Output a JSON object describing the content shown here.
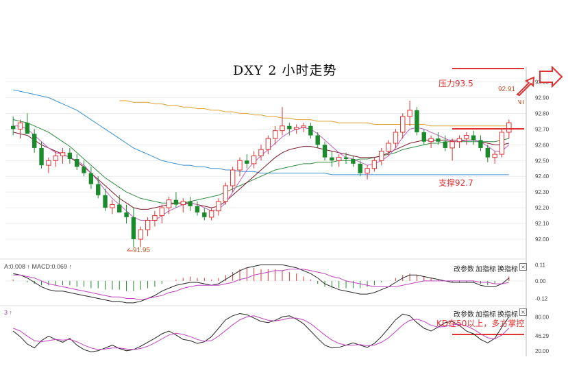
{
  "title": "DXY 2 小时走势",
  "annotations": {
    "resistance": "压力93.5",
    "support": "支撑92.7",
    "kd_note": "KD在50以上，多方掌控",
    "last_high": "92.91",
    "low_mark": "91.95"
  },
  "indicator_header": {
    "macd_text": "A:0.008 ↑ MACD:0.069 ↑",
    "kd_text": "3 ↑"
  },
  "toolbar": {
    "change_params": "改参数",
    "add_indicator": "加指标",
    "switch_indicator": "换指标",
    "close_glyph": "×"
  },
  "axes": {
    "main_ticks": [
      "93.00",
      "92.90",
      "92.80",
      "92.70",
      "92.60",
      "92.50",
      "92.40",
      "92.30",
      "92.20",
      "92.10",
      "92.00"
    ],
    "macd_ticks": [
      "0.11",
      "0.00",
      "-0.12"
    ],
    "kd_ticks": [
      "80.00",
      "46.29",
      "20.00"
    ]
  },
  "colors": {
    "up": "#e03030",
    "down": "#1a8a2a",
    "ma_blue": "#3a8fd0",
    "ma_orange": "#e0a030",
    "ma_green": "#2e8b3e",
    "ma_darkred": "#7a1a2a",
    "ma_pink": "#c060c0",
    "ma_black": "#222222",
    "annotation": "#e03030"
  },
  "chart_data": {
    "type": "candlestick",
    "title": "DXY 2 小时走势",
    "ylim": [
      91.9,
      93.05
    ],
    "candles": [
      [
        92.72,
        92.78,
        92.66,
        92.7
      ],
      [
        92.7,
        92.76,
        92.64,
        92.74
      ],
      [
        92.74,
        92.8,
        92.68,
        92.67
      ],
      [
        92.67,
        92.7,
        92.55,
        92.58
      ],
      [
        92.58,
        92.62,
        92.45,
        92.47
      ],
      [
        92.47,
        92.52,
        92.42,
        92.5
      ],
      [
        92.5,
        92.56,
        92.46,
        92.53
      ],
      [
        92.53,
        92.58,
        92.48,
        92.55
      ],
      [
        92.55,
        92.58,
        92.48,
        92.51
      ],
      [
        92.51,
        92.54,
        92.44,
        92.46
      ],
      [
        92.46,
        92.5,
        92.4,
        92.42
      ],
      [
        92.42,
        92.46,
        92.32,
        92.35
      ],
      [
        92.35,
        92.4,
        92.26,
        92.28
      ],
      [
        92.28,
        92.32,
        92.18,
        92.2
      ],
      [
        92.2,
        92.25,
        92.16,
        92.22
      ],
      [
        92.22,
        92.28,
        92.18,
        92.17
      ],
      [
        92.17,
        92.22,
        92.1,
        92.14
      ],
      [
        92.14,
        92.2,
        91.95,
        92.0
      ],
      [
        92.0,
        92.08,
        91.95,
        92.06
      ],
      [
        92.06,
        92.14,
        92.02,
        92.12
      ],
      [
        92.12,
        92.18,
        92.08,
        92.15
      ],
      [
        92.15,
        92.22,
        92.1,
        92.2
      ],
      [
        92.2,
        92.27,
        92.16,
        92.25
      ],
      [
        92.25,
        92.3,
        92.2,
        92.22
      ],
      [
        92.22,
        92.26,
        92.17,
        92.24
      ],
      [
        92.24,
        92.27,
        92.18,
        92.21
      ],
      [
        92.21,
        92.24,
        92.15,
        92.17
      ],
      [
        92.17,
        92.2,
        92.12,
        92.14
      ],
      [
        92.14,
        92.2,
        92.12,
        92.18
      ],
      [
        92.18,
        92.26,
        92.15,
        92.24
      ],
      [
        92.24,
        92.36,
        92.22,
        92.34
      ],
      [
        92.34,
        92.46,
        92.3,
        92.44
      ],
      [
        92.44,
        92.52,
        92.4,
        92.5
      ],
      [
        92.5,
        92.54,
        92.45,
        92.48
      ],
      [
        92.48,
        92.56,
        92.45,
        92.53
      ],
      [
        92.53,
        92.6,
        92.5,
        92.57
      ],
      [
        92.57,
        92.66,
        92.54,
        92.64
      ],
      [
        92.64,
        92.72,
        92.6,
        92.69
      ],
      [
        92.69,
        92.84,
        92.66,
        92.72
      ],
      [
        92.72,
        92.74,
        92.66,
        92.7
      ],
      [
        92.7,
        92.73,
        92.67,
        92.71
      ],
      [
        92.71,
        92.74,
        92.68,
        92.72
      ],
      [
        92.72,
        92.74,
        92.64,
        92.66
      ],
      [
        92.66,
        92.68,
        92.58,
        92.6
      ],
      [
        92.6,
        92.62,
        92.5,
        92.52
      ],
      [
        92.52,
        92.56,
        92.46,
        92.5
      ],
      [
        92.5,
        92.54,
        92.46,
        92.52
      ],
      [
        92.52,
        92.55,
        92.48,
        92.51
      ],
      [
        92.51,
        92.53,
        92.46,
        92.48
      ],
      [
        92.48,
        92.5,
        92.4,
        92.42
      ],
      [
        92.42,
        92.47,
        92.38,
        92.45
      ],
      [
        92.45,
        92.52,
        92.43,
        92.5
      ],
      [
        92.5,
        92.58,
        92.47,
        92.56
      ],
      [
        92.56,
        92.63,
        92.53,
        92.61
      ],
      [
        92.61,
        92.7,
        92.58,
        92.68
      ],
      [
        92.68,
        92.8,
        92.64,
        92.78
      ],
      [
        92.78,
        92.88,
        92.72,
        92.82
      ],
      [
        92.82,
        92.84,
        92.66,
        92.68
      ],
      [
        92.68,
        92.7,
        92.6,
        92.62
      ],
      [
        92.62,
        92.66,
        92.58,
        92.64
      ],
      [
        92.64,
        92.68,
        92.6,
        92.62
      ],
      [
        92.62,
        92.66,
        92.56,
        92.58
      ],
      [
        92.58,
        92.64,
        92.5,
        92.62
      ],
      [
        92.62,
        92.66,
        92.58,
        92.64
      ],
      [
        92.64,
        92.68,
        92.6,
        92.66
      ],
      [
        92.66,
        92.69,
        92.6,
        92.63
      ],
      [
        92.63,
        92.66,
        92.56,
        92.58
      ],
      [
        92.58,
        92.6,
        92.49,
        92.52
      ],
      [
        92.52,
        92.56,
        92.48,
        92.54
      ],
      [
        92.54,
        92.7,
        92.52,
        92.68
      ],
      [
        92.68,
        92.76,
        92.64,
        92.74
      ]
    ],
    "moving_averages": {
      "blue": [
        92.95,
        92.94,
        92.93,
        92.92,
        92.91,
        92.9,
        92.88,
        92.86,
        92.84,
        92.82,
        92.79,
        92.76,
        92.73,
        92.7,
        92.67,
        92.64,
        92.61,
        92.58,
        92.56,
        92.54,
        92.52,
        92.5,
        92.49,
        92.48,
        92.47,
        92.47,
        92.46,
        92.46,
        92.45,
        92.45,
        92.44,
        92.44,
        92.43,
        92.43,
        92.43,
        92.42,
        92.42,
        92.42,
        92.42,
        92.42,
        92.42,
        92.42,
        92.42,
        92.42,
        92.42,
        92.41,
        92.41,
        92.41,
        92.41,
        92.41,
        92.41,
        92.41,
        92.41,
        92.41,
        92.41,
        92.41,
        92.41,
        92.41,
        92.41,
        92.41,
        92.41,
        92.41,
        92.41,
        92.41,
        92.41,
        92.41,
        92.41,
        92.41,
        92.41,
        92.41,
        92.41
      ],
      "orange": [
        null,
        null,
        null,
        null,
        null,
        null,
        null,
        null,
        null,
        null,
        null,
        null,
        null,
        null,
        null,
        92.88,
        92.88,
        92.87,
        92.87,
        92.87,
        92.86,
        92.86,
        92.85,
        92.85,
        92.84,
        92.84,
        92.83,
        92.83,
        92.82,
        92.82,
        92.81,
        92.81,
        92.8,
        92.8,
        92.79,
        92.79,
        92.78,
        92.78,
        92.77,
        92.77,
        92.76,
        92.76,
        92.76,
        92.75,
        92.75,
        92.75,
        92.74,
        92.74,
        92.74,
        92.74,
        92.74,
        92.73,
        92.73,
        92.73,
        92.73,
        92.73,
        92.73,
        92.73,
        92.73,
        92.72,
        92.72,
        92.72,
        92.72,
        92.72,
        92.72,
        92.72,
        92.72,
        92.72,
        92.72,
        92.72,
        92.72
      ],
      "green": [
        92.76,
        92.75,
        92.74,
        92.72,
        92.7,
        92.68,
        92.65,
        92.62,
        92.59,
        92.55,
        92.51,
        92.47,
        92.43,
        92.39,
        92.36,
        92.33,
        92.3,
        92.28,
        92.26,
        92.25,
        92.24,
        92.23,
        92.23,
        92.23,
        92.23,
        92.24,
        92.25,
        92.26,
        92.27,
        92.28,
        92.3,
        92.32,
        92.34,
        92.36,
        92.38,
        92.4,
        92.42,
        92.44,
        92.45,
        92.46,
        92.47,
        92.48,
        92.48,
        92.49,
        92.49,
        92.49,
        92.5,
        92.5,
        92.5,
        92.51,
        92.51,
        92.52,
        92.53,
        92.54,
        92.55,
        92.57,
        92.58,
        92.59,
        92.6,
        92.61,
        92.61,
        92.62,
        92.62,
        92.62,
        92.62,
        92.62,
        92.62,
        92.62,
        92.62,
        92.63,
        92.64
      ],
      "darkred": [
        92.68,
        92.67,
        92.66,
        92.63,
        92.6,
        92.58,
        92.56,
        92.54,
        92.52,
        92.49,
        92.46,
        92.42,
        92.38,
        92.34,
        92.3,
        92.26,
        92.23,
        92.2,
        92.19,
        92.19,
        92.2,
        92.21,
        92.22,
        92.23,
        92.23,
        92.23,
        92.22,
        92.21,
        92.2,
        92.21,
        92.24,
        92.28,
        92.32,
        92.36,
        92.4,
        92.44,
        92.48,
        92.52,
        92.55,
        92.57,
        92.58,
        92.59,
        92.59,
        92.58,
        92.57,
        92.56,
        92.55,
        92.54,
        92.53,
        92.52,
        92.52,
        92.52,
        92.53,
        92.55,
        92.57,
        92.59,
        92.61,
        92.62,
        92.63,
        92.63,
        92.63,
        92.63,
        92.63,
        92.63,
        92.63,
        92.63,
        92.62,
        92.61,
        92.6,
        92.6,
        92.61
      ],
      "pink": [
        92.72,
        92.72,
        92.7,
        92.66,
        92.62,
        92.58,
        92.55,
        92.54,
        92.52,
        92.5,
        92.47,
        92.42,
        92.37,
        92.31,
        92.26,
        92.22,
        92.18,
        92.14,
        92.12,
        92.12,
        92.12,
        92.15,
        92.18,
        92.2,
        92.22,
        92.23,
        92.22,
        92.2,
        92.18,
        92.19,
        92.23,
        92.3,
        92.37,
        92.44,
        92.49,
        92.53,
        92.57,
        92.61,
        92.65,
        92.68,
        92.7,
        92.71,
        92.7,
        92.67,
        92.63,
        92.59,
        92.55,
        92.52,
        92.51,
        92.49,
        92.47,
        92.48,
        92.5,
        92.53,
        92.58,
        92.65,
        92.7,
        92.71,
        92.7,
        92.68,
        92.66,
        92.64,
        92.62,
        92.62,
        92.63,
        92.63,
        92.62,
        92.59,
        92.56,
        92.56,
        92.6
      ]
    },
    "macd": {
      "histogram": [
        0.01,
        0.0,
        -0.01,
        -0.02,
        -0.03,
        -0.03,
        -0.03,
        -0.03,
        -0.03,
        -0.04,
        -0.04,
        -0.05,
        -0.05,
        -0.06,
        -0.06,
        -0.06,
        -0.07,
        -0.07,
        -0.06,
        -0.05,
        -0.04,
        -0.02,
        0.0,
        0.01,
        0.02,
        0.03,
        0.02,
        0.02,
        0.01,
        0.02,
        0.04,
        0.06,
        0.08,
        0.09,
        0.09,
        0.08,
        0.08,
        0.08,
        0.07,
        0.06,
        0.05,
        0.03,
        0.01,
        -0.02,
        -0.04,
        -0.05,
        -0.05,
        -0.05,
        -0.05,
        -0.05,
        -0.04,
        -0.03,
        -0.01,
        0.0,
        0.02,
        0.04,
        0.05,
        0.04,
        0.03,
        0.02,
        0.01,
        0.0,
        -0.01,
        -0.01,
        -0.01,
        -0.01,
        -0.02,
        -0.03,
        -0.02,
        0.0,
        0.03
      ],
      "dif": [
        0.05,
        0.04,
        0.02,
        -0.01,
        -0.04,
        -0.06,
        -0.07,
        -0.07,
        -0.08,
        -0.09,
        -0.1,
        -0.11,
        -0.12,
        -0.13,
        -0.14,
        -0.14,
        -0.15,
        -0.15,
        -0.14,
        -0.12,
        -0.1,
        -0.07,
        -0.05,
        -0.03,
        -0.02,
        -0.01,
        -0.01,
        -0.02,
        -0.03,
        -0.02,
        0.01,
        0.04,
        0.07,
        0.09,
        0.1,
        0.11,
        0.11,
        0.11,
        0.11,
        0.1,
        0.09,
        0.07,
        0.05,
        0.02,
        -0.02,
        -0.04,
        -0.06,
        -0.07,
        -0.08,
        -0.09,
        -0.09,
        -0.08,
        -0.06,
        -0.04,
        -0.01,
        0.02,
        0.04,
        0.04,
        0.03,
        0.02,
        0.01,
        0.0,
        -0.01,
        -0.01,
        -0.01,
        -0.01,
        -0.03,
        -0.04,
        -0.04,
        -0.02,
        0.02
      ],
      "dea": [
        0.04,
        0.04,
        0.03,
        0.02,
        0.0,
        -0.02,
        -0.03,
        -0.04,
        -0.05,
        -0.06,
        -0.07,
        -0.08,
        -0.09,
        -0.1,
        -0.11,
        -0.11,
        -0.12,
        -0.12,
        -0.13,
        -0.12,
        -0.11,
        -0.1,
        -0.08,
        -0.07,
        -0.05,
        -0.04,
        -0.03,
        -0.03,
        -0.03,
        -0.03,
        -0.02,
        -0.01,
        0.01,
        0.02,
        0.04,
        0.05,
        0.06,
        0.07,
        0.07,
        0.08,
        0.08,
        0.08,
        0.07,
        0.06,
        0.05,
        0.03,
        0.02,
        0.0,
        -0.01,
        -0.02,
        -0.03,
        -0.04,
        -0.04,
        -0.04,
        -0.04,
        -0.03,
        -0.02,
        -0.01,
        0.0,
        0.0,
        0.0,
        0.0,
        0.0,
        0.0,
        0.0,
        0.0,
        -0.01,
        -0.01,
        -0.02,
        -0.02,
        -0.01
      ]
    },
    "kd": {
      "k": [
        55,
        45,
        32,
        25,
        38,
        46,
        40,
        35,
        42,
        30,
        22,
        18,
        20,
        25,
        30,
        24,
        20,
        22,
        28,
        35,
        42,
        50,
        55,
        48,
        40,
        38,
        33,
        36,
        45,
        60,
        75,
        82,
        86,
        84,
        78,
        72,
        70,
        74,
        80,
        82,
        76,
        68,
        55,
        42,
        30,
        25,
        26,
        30,
        34,
        30,
        26,
        33,
        45,
        60,
        75,
        85,
        82,
        70,
        60,
        55,
        62,
        70,
        72,
        65,
        55,
        50,
        40,
        34,
        42,
        62,
        80
      ],
      "d": [
        60,
        55,
        46,
        38,
        36,
        38,
        40,
        39,
        40,
        36,
        30,
        25,
        22,
        23,
        25,
        25,
        23,
        22,
        24,
        28,
        34,
        41,
        48,
        51,
        49,
        45,
        40,
        37,
        38,
        46,
        56,
        66,
        75,
        80,
        82,
        78,
        74,
        73,
        75,
        78,
        78,
        75,
        68,
        58,
        48,
        39,
        33,
        30,
        30,
        31,
        29,
        30,
        35,
        43,
        54,
        66,
        74,
        76,
        72,
        65,
        62,
        63,
        66,
        67,
        64,
        58,
        50,
        43,
        41,
        48,
        60
      ]
    },
    "kd_ylim": [
      10,
      100
    ],
    "macd_ylim": [
      -0.16,
      0.14
    ]
  }
}
